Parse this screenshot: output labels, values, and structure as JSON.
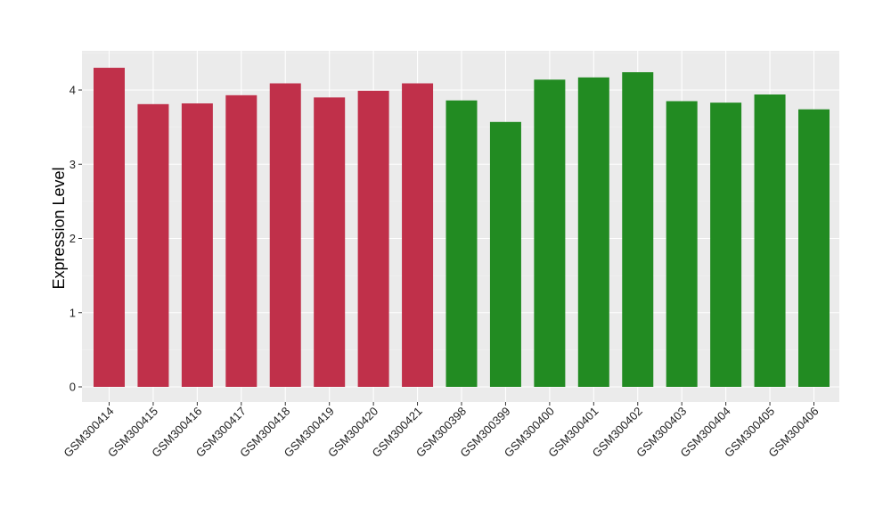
{
  "chart_data": {
    "type": "bar",
    "title": "",
    "xlabel": "",
    "ylabel": "Expression Level",
    "ylim": [
      0,
      4.5
    ],
    "yticks": [
      0,
      1,
      2,
      3,
      4
    ],
    "grid": true,
    "background": "#EBEBEB",
    "categories": [
      "GSM300414",
      "GSM300415",
      "GSM300416",
      "GSM300417",
      "GSM300418",
      "GSM300419",
      "GSM300420",
      "GSM300421",
      "GSM300398",
      "GSM300399",
      "GSM300400",
      "GSM300401",
      "GSM300402",
      "GSM300403",
      "GSM300404",
      "GSM300405",
      "GSM300406"
    ],
    "values": [
      4.3,
      3.81,
      3.82,
      3.93,
      4.09,
      3.9,
      3.99,
      4.09,
      3.86,
      3.57,
      4.14,
      4.17,
      4.24,
      3.85,
      3.83,
      3.94,
      3.74
    ],
    "bar_colors": [
      "#C0304A",
      "#C0304A",
      "#C0304A",
      "#C0304A",
      "#C0304A",
      "#C0304A",
      "#C0304A",
      "#C0304A",
      "#228B22",
      "#228B22",
      "#228B22",
      "#228B22",
      "#228B22",
      "#228B22",
      "#228B22",
      "#228B22",
      "#228B22"
    ]
  }
}
